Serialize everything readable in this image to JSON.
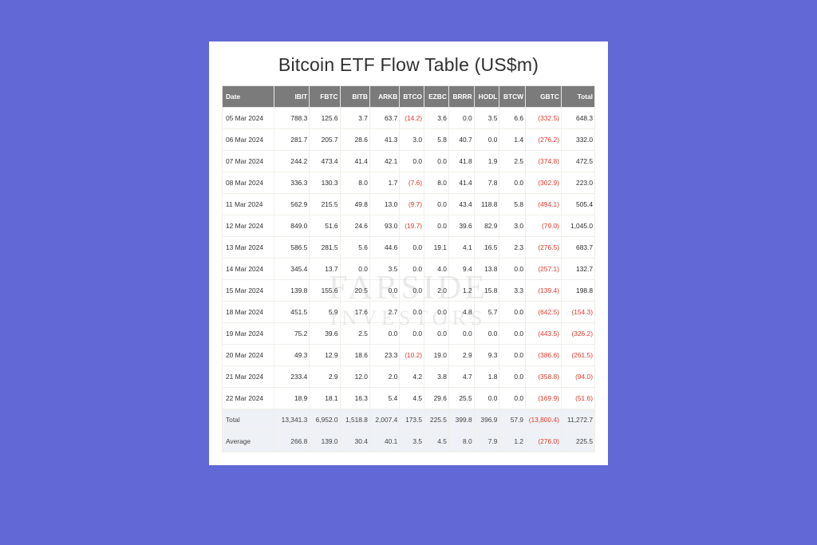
{
  "page": {
    "background_color": "#6268d5",
    "card_background": "#ffffff"
  },
  "title": "Bitcoin ETF Flow Table (US$m)",
  "watermark": {
    "line1": "FARSIDE",
    "line2": "INVESTORS"
  },
  "table": {
    "type": "table",
    "header_bg": "#7b7b7b",
    "header_fg": "#ffffff",
    "cell_border": "#f0efe9",
    "negative_color": "#e03a2a",
    "summary_bg": "#eef2f6",
    "col_widths_pct": [
      14.0,
      9.4,
      8.2,
      8.0,
      8.0,
      6.6,
      6.6,
      6.8,
      6.8,
      7.0,
      9.6,
      9.0
    ],
    "columns": [
      "Date",
      "IBIT",
      "FBTC",
      "BITB",
      "ARKB",
      "BTCO",
      "EZBC",
      "BRRR",
      "HODL",
      "BTCW",
      "GBTC",
      "Total"
    ],
    "rows": [
      [
        "05 Mar 2024",
        "788.3",
        "125.6",
        "3.7",
        "63.7",
        "(14.2)",
        "3.6",
        "0.0",
        "3.5",
        "6.6",
        "(332.5)",
        "648.3"
      ],
      [
        "06 Mar 2024",
        "281.7",
        "205.7",
        "28.6",
        "41.3",
        "3.0",
        "5.8",
        "40.7",
        "0.0",
        "1.4",
        "(276.2)",
        "332.0"
      ],
      [
        "07 Mar 2024",
        "244.2",
        "473.4",
        "41.4",
        "42.1",
        "0.0",
        "0.0",
        "41.8",
        "1.9",
        "2.5",
        "(374.8)",
        "472.5"
      ],
      [
        "08 Mar 2024",
        "336.3",
        "130.3",
        "8.0",
        "1.7",
        "(7.6)",
        "8.0",
        "41.4",
        "7.8",
        "0.0",
        "(302.9)",
        "223.0"
      ],
      [
        "11 Mar 2024",
        "562.9",
        "215.5",
        "49.8",
        "13.0",
        "(9.7)",
        "0.0",
        "43.4",
        "118.8",
        "5.8",
        "(494.1)",
        "505.4"
      ],
      [
        "12 Mar 2024",
        "849.0",
        "51.6",
        "24.6",
        "93.0",
        "(19.7)",
        "0.0",
        "39.6",
        "82.9",
        "3.0",
        "(79.0)",
        "1,045.0"
      ],
      [
        "13 Mar 2024",
        "586.5",
        "281.5",
        "5.6",
        "44.6",
        "0.0",
        "19.1",
        "4.1",
        "16.5",
        "2.3",
        "(276.5)",
        "683.7"
      ],
      [
        "14 Mar 2024",
        "345.4",
        "13.7",
        "0.0",
        "3.5",
        "0.0",
        "4.0",
        "9.4",
        "13.8",
        "0.0",
        "(257.1)",
        "132.7"
      ],
      [
        "15 Mar 2024",
        "139.8",
        "155.6",
        "20.5",
        "0.0",
        "0.0",
        "2.0",
        "1.2",
        "15.8",
        "3.3",
        "(139.4)",
        "198.8"
      ],
      [
        "18 Mar 2024",
        "451.5",
        "5.9",
        "17.6",
        "2.7",
        "0.0",
        "0.0",
        "4.8",
        "5.7",
        "0.0",
        "(642.5)",
        "(154.3)"
      ],
      [
        "19 Mar 2024",
        "75.2",
        "39.6",
        "2.5",
        "0.0",
        "0.0",
        "0.0",
        "0.0",
        "0.0",
        "0.0",
        "(443.5)",
        "(326.2)"
      ],
      [
        "20 Mar 2024",
        "49.3",
        "12.9",
        "18.6",
        "23.3",
        "(10.2)",
        "19.0",
        "2.9",
        "9.3",
        "0.0",
        "(386.6)",
        "(261.5)"
      ],
      [
        "21 Mar 2024",
        "233.4",
        "2.9",
        "12.0",
        "2.0",
        "4.2",
        "3.8",
        "4.7",
        "1.8",
        "0.0",
        "(358.8)",
        "(94.0)"
      ],
      [
        "22 Mar 2024",
        "18.9",
        "18.1",
        "16.3",
        "5.4",
        "4.5",
        "29.6",
        "25.5",
        "0.0",
        "0.0",
        "(169.9)",
        "(51.6)"
      ]
    ],
    "summary_rows": [
      [
        "Total",
        "13,341.3",
        "6,952.0",
        "1,518.8",
        "2,007.4",
        "173.5",
        "225.5",
        "399.8",
        "396.9",
        "57.9",
        "(13,800.4)",
        "11,272.7"
      ],
      [
        "Average",
        "266.8",
        "139.0",
        "30.4",
        "40.1",
        "3.5",
        "4.5",
        "8.0",
        "7.9",
        "1.2",
        "(276.0)",
        "225.5"
      ]
    ]
  }
}
